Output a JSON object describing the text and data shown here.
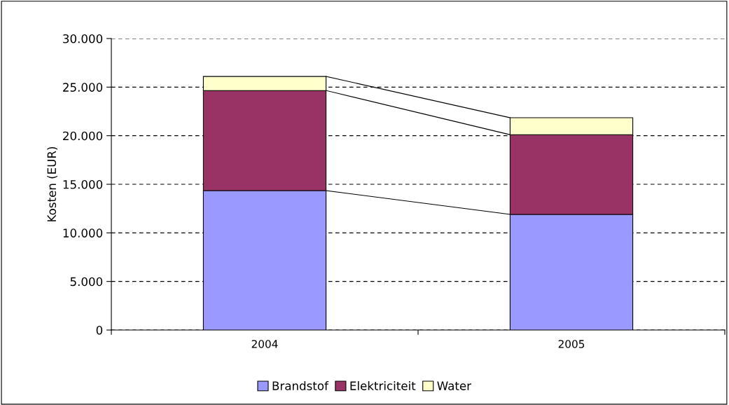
{
  "chart_data": {
    "type": "bar",
    "stacked": true,
    "ylabel": "Kosten (EUR)",
    "categories": [
      "2004",
      "2005"
    ],
    "series": [
      {
        "name": "Brandstof",
        "color": "#9999ff",
        "values": [
          14350,
          11900
        ]
      },
      {
        "name": "Elektriciteit",
        "color": "#993366",
        "values": [
          10300,
          8200
        ]
      },
      {
        "name": "Water",
        "color": "#ffffcc",
        "values": [
          1450,
          1750
        ]
      }
    ],
    "ylim": [
      0,
      30000
    ],
    "yticks": [
      {
        "value": 0,
        "label": "0"
      },
      {
        "value": 5000,
        "label": "5.000"
      },
      {
        "value": 10000,
        "label": "10.000"
      },
      {
        "value": 15000,
        "label": "15.000"
      },
      {
        "value": 20000,
        "label": "20.000"
      },
      {
        "value": 25000,
        "label": "25.000"
      },
      {
        "value": 30000,
        "label": "30.000"
      }
    ],
    "grid": "y",
    "legend": "bottom"
  }
}
